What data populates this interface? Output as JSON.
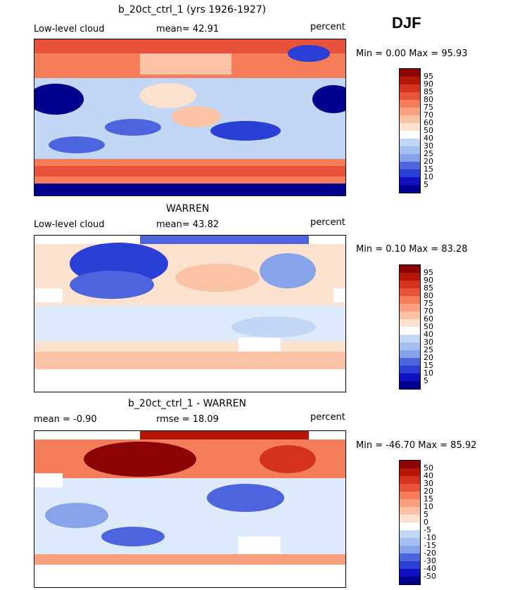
{
  "season": "DJF",
  "colors": {
    "pos": [
      "#fde1cf",
      "#fbc3a6",
      "#fba07f",
      "#f67d5a",
      "#e8523a",
      "#d5311f",
      "#b41707",
      "#8c0303"
    ],
    "neg": [
      "#dceafb",
      "#c2d6f6",
      "#a5bff0",
      "#87a4ea",
      "#6a86e4",
      "#4c65de",
      "#2a3fd6",
      "#1010c0",
      "#00008f"
    ],
    "white": "#ffffff"
  },
  "panels": [
    {
      "title": "b_20ct_ctrl_1 (yrs 1926-1927)",
      "left_label": "Low-level cloud",
      "center_label": "mean=  42.91",
      "right_label": "percent",
      "minmax": "Min =    0.00 Max =   95.93",
      "legend_ticks": [
        "95",
        "90",
        "85",
        "80",
        "75",
        "70",
        "60",
        "50",
        "40",
        "30",
        "25",
        "20",
        "15",
        "10",
        "5"
      ],
      "legend_colors": [
        "#8c0303",
        "#b41707",
        "#d5311f",
        "#e8523a",
        "#f67d5a",
        "#fba07f",
        "#fbc3a6",
        "#fde1cf",
        "#ffffff",
        "#c2d6f6",
        "#a5bff0",
        "#87a4ea",
        "#4c65de",
        "#2a3fd6",
        "#1010c0",
        "#00008f"
      ]
    },
    {
      "title": "WARREN",
      "left_label": "Low-level cloud",
      "center_label": "mean=  43.82",
      "right_label": "percent",
      "minmax": "Min =    0.10 Max =   83.28",
      "legend_ticks": [
        "95",
        "90",
        "85",
        "80",
        "75",
        "70",
        "60",
        "50",
        "40",
        "30",
        "25",
        "20",
        "15",
        "10",
        "5"
      ],
      "legend_colors": [
        "#8c0303",
        "#b41707",
        "#d5311f",
        "#e8523a",
        "#f67d5a",
        "#fba07f",
        "#fbc3a6",
        "#fde1cf",
        "#ffffff",
        "#c2d6f6",
        "#a5bff0",
        "#87a4ea",
        "#4c65de",
        "#2a3fd6",
        "#1010c0",
        "#00008f"
      ]
    },
    {
      "title": "b_20ct_ctrl_1 - WARREN",
      "left_label": "mean =   -0.90",
      "center_label": "rmse =   18.09",
      "right_label": "percent",
      "minmax": "Min = -46.70 Max =   85.92",
      "legend_ticks": [
        "50",
        "40",
        "30",
        "20",
        "15",
        "10",
        "5",
        "0",
        "-5",
        "-10",
        "-15",
        "-20",
        "-30",
        "-40",
        "-50"
      ],
      "legend_colors": [
        "#8c0303",
        "#b41707",
        "#d5311f",
        "#e8523a",
        "#f67d5a",
        "#fba07f",
        "#fbc3a6",
        "#fde1cf",
        "#ffffff",
        "#c2d6f6",
        "#a5bff0",
        "#87a4ea",
        "#4c65de",
        "#2a3fd6",
        "#1010c0",
        "#00008f"
      ]
    }
  ]
}
